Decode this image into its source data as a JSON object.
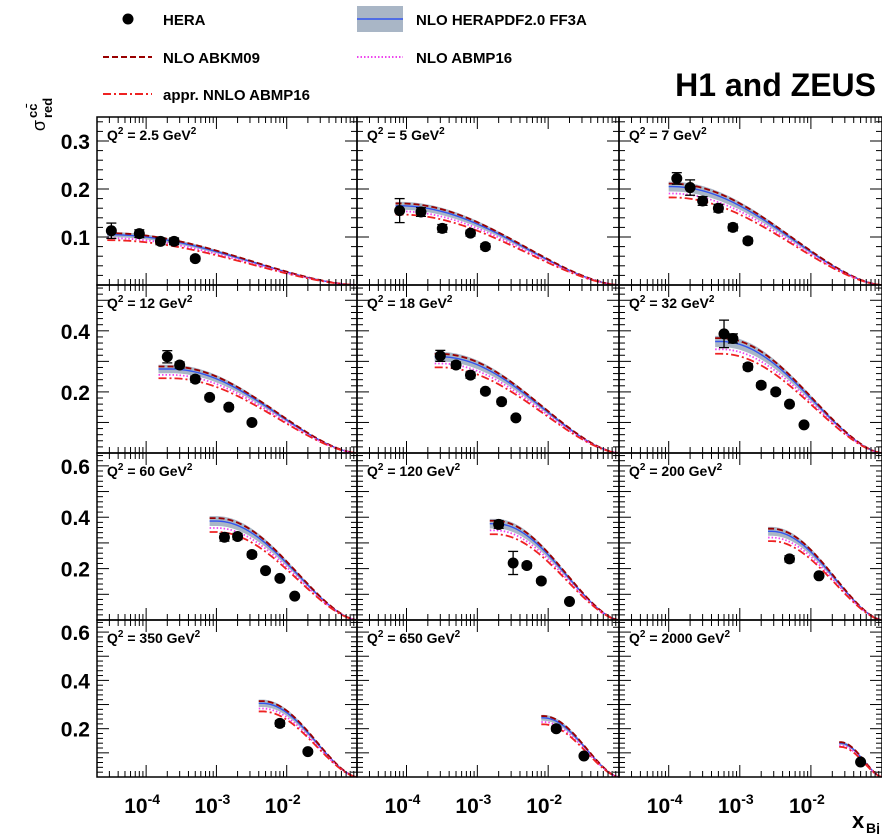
{
  "legend": {
    "hera": "HERA",
    "herapdf": "NLO HERAPDF2.0 FF3A",
    "abkm09": "NLO ABKM09",
    "abmp16": "NLO ABMP16",
    "abmp16_nnlo": "appr. NNLO ABMP16"
  },
  "collab_title": "H1 and ZEUS",
  "axis": {
    "ylabel_main": "σ",
    "ylabel_sup": "cc̄",
    "ylabel_sub": "red",
    "xlabel_main": "x",
    "xlabel_sub": "Bj"
  },
  "colors": {
    "herapdf_line": "#3355ee",
    "herapdf_band": "#a9b6c6",
    "abkm09": "#990000",
    "abmp16": "#ee44ee",
    "abmp16_nnlo": "#ee2222",
    "data": "#000000"
  },
  "chart_data": {
    "type": "scatter",
    "x_scale": "log",
    "x_axis_label": "x_Bj",
    "y_axis_label": "σ_red^cc̄",
    "xlim": [
      2e-05,
      0.1
    ],
    "x_ticks": [
      {
        "value": 0.0001,
        "label": "10",
        "exp": "-4"
      },
      {
        "value": 0.001,
        "label": "10",
        "exp": "-3"
      },
      {
        "value": 0.01,
        "label": "10",
        "exp": "-2"
      }
    ],
    "row_ylim": [
      [
        0.0,
        0.35
      ],
      [
        0.0,
        0.55
      ],
      [
        0.0,
        0.65
      ],
      [
        0.0,
        0.65
      ]
    ],
    "row_yticks": [
      [
        0.1,
        0.2,
        0.3
      ],
      [
        0.2,
        0.4
      ],
      [
        0.2,
        0.4,
        0.6
      ],
      [
        0.2,
        0.4,
        0.6
      ]
    ],
    "series_names": [
      "HERA",
      "NLO HERAPDF2.0 FF3A",
      "NLO ABKM09",
      "NLO ABMP16",
      "appr. NNLO ABMP16"
    ],
    "panels": [
      {
        "label_base": "Q",
        "label_sup": "2",
        "label_value": " = 2.5 GeV",
        "label_unit_sup": "2",
        "Q2": 2.5,
        "row": 0,
        "col": 0,
        "data": [
          {
            "x": 3.2e-05,
            "y": 0.113,
            "err": 0.016
          },
          {
            "x": 8e-05,
            "y": 0.107,
            "err": 0.008
          },
          {
            "x": 0.00016,
            "y": 0.091,
            "err": 0.007
          },
          {
            "x": 0.00025,
            "y": 0.091,
            "err": 0.007
          },
          {
            "x": 0.0005,
            "y": 0.055,
            "err": 0.005
          }
        ],
        "theory": {
          "xmin": 2.8e-05,
          "ymax": 0.105,
          "xpeak": 2.8e-05,
          "xend": 0.1,
          "yend": 0.0
        }
      },
      {
        "label_base": "Q",
        "label_sup": "2",
        "label_value": " = 5 GeV",
        "label_unit_sup": "2",
        "Q2": 5,
        "row": 0,
        "col": 1,
        "data": [
          {
            "x": 8e-05,
            "y": 0.155,
            "err": 0.025
          },
          {
            "x": 0.00016,
            "y": 0.152,
            "err": 0.009
          },
          {
            "x": 0.00032,
            "y": 0.118,
            "err": 0.008
          },
          {
            "x": 0.0008,
            "y": 0.108,
            "err": 0.006
          },
          {
            "x": 0.0013,
            "y": 0.08,
            "err": 0.006
          }
        ],
        "theory": {
          "xmin": 7e-05,
          "ymax": 0.165,
          "xpeak": 8e-05,
          "xend": 0.1,
          "yend": 0.0
        }
      },
      {
        "label_base": "Q",
        "label_sup": "2",
        "label_value": " = 7 GeV",
        "label_unit_sup": "2",
        "Q2": 7,
        "row": 0,
        "col": 2,
        "data": [
          {
            "x": 0.00013,
            "y": 0.222,
            "err": 0.012
          },
          {
            "x": 0.0002,
            "y": 0.203,
            "err": 0.016
          },
          {
            "x": 0.0003,
            "y": 0.175,
            "err": 0.009
          },
          {
            "x": 0.0005,
            "y": 0.16,
            "err": 0.008
          },
          {
            "x": 0.0008,
            "y": 0.12,
            "err": 0.007
          },
          {
            "x": 0.0013,
            "y": 0.092,
            "err": 0.006
          }
        ],
        "theory": {
          "xmin": 0.0001,
          "ymax": 0.205,
          "xpeak": 0.00011,
          "xend": 0.1,
          "yend": 0.0
        }
      },
      {
        "label_base": "Q",
        "label_sup": "2",
        "label_value": " = 12 GeV",
        "label_unit_sup": "2",
        "Q2": 12,
        "row": 1,
        "col": 0,
        "data": [
          {
            "x": 0.0002,
            "y": 0.315,
            "err": 0.02
          },
          {
            "x": 0.0003,
            "y": 0.288,
            "err": 0.01
          },
          {
            "x": 0.0005,
            "y": 0.242,
            "err": 0.01
          },
          {
            "x": 0.0008,
            "y": 0.182,
            "err": 0.008
          },
          {
            "x": 0.0015,
            "y": 0.15,
            "err": 0.008
          },
          {
            "x": 0.0032,
            "y": 0.1,
            "err": 0.006
          }
        ],
        "theory": {
          "xmin": 0.00015,
          "ymax": 0.275,
          "xpeak": 0.00022,
          "xend": 0.1,
          "yend": 0.0
        }
      },
      {
        "label_base": "Q",
        "label_sup": "2",
        "label_value": " = 18 GeV",
        "label_unit_sup": "2",
        "Q2": 18,
        "row": 1,
        "col": 1,
        "data": [
          {
            "x": 0.0003,
            "y": 0.318,
            "err": 0.018
          },
          {
            "x": 0.0005,
            "y": 0.288,
            "err": 0.01
          },
          {
            "x": 0.0008,
            "y": 0.255,
            "err": 0.01
          },
          {
            "x": 0.0013,
            "y": 0.202,
            "err": 0.008
          },
          {
            "x": 0.0022,
            "y": 0.168,
            "err": 0.008
          },
          {
            "x": 0.0035,
            "y": 0.115,
            "err": 0.007
          }
        ],
        "theory": {
          "xmin": 0.00025,
          "ymax": 0.315,
          "xpeak": 0.0003,
          "xend": 0.1,
          "yend": 0.0
        }
      },
      {
        "label_base": "Q",
        "label_sup": "2",
        "label_value": " = 32 GeV",
        "label_unit_sup": "2",
        "Q2": 32,
        "row": 1,
        "col": 2,
        "data": [
          {
            "x": 0.0006,
            "y": 0.39,
            "err": 0.045
          },
          {
            "x": 0.0008,
            "y": 0.375,
            "err": 0.015
          },
          {
            "x": 0.0013,
            "y": 0.282,
            "err": 0.01
          },
          {
            "x": 0.002,
            "y": 0.222,
            "err": 0.008
          },
          {
            "x": 0.0032,
            "y": 0.2,
            "err": 0.008
          },
          {
            "x": 0.005,
            "y": 0.16,
            "err": 0.007
          },
          {
            "x": 0.008,
            "y": 0.092,
            "err": 0.006
          }
        ],
        "theory": {
          "xmin": 0.00045,
          "ymax": 0.365,
          "xpeak": 0.00055,
          "xend": 0.1,
          "yend": 0.0
        }
      },
      {
        "label_base": "Q",
        "label_sup": "2",
        "label_value": " = 60 GeV",
        "label_unit_sup": "2",
        "Q2": 60,
        "row": 2,
        "col": 0,
        "data": [
          {
            "x": 0.0013,
            "y": 0.322,
            "err": 0.015
          },
          {
            "x": 0.002,
            "y": 0.325,
            "err": 0.012
          },
          {
            "x": 0.0032,
            "y": 0.255,
            "err": 0.01
          },
          {
            "x": 0.005,
            "y": 0.192,
            "err": 0.008
          },
          {
            "x": 0.008,
            "y": 0.162,
            "err": 0.007
          },
          {
            "x": 0.013,
            "y": 0.093,
            "err": 0.006
          }
        ],
        "theory": {
          "xmin": 0.0008,
          "ymax": 0.385,
          "xpeak": 0.001,
          "xend": 0.1,
          "yend": 0.0
        }
      },
      {
        "label_base": "Q",
        "label_sup": "2",
        "label_value": " = 120 GeV",
        "label_unit_sup": "2",
        "Q2": 120,
        "row": 2,
        "col": 1,
        "data": [
          {
            "x": 0.002,
            "y": 0.372,
            "err": 0.015
          },
          {
            "x": 0.0032,
            "y": 0.222,
            "err": 0.045
          },
          {
            "x": 0.005,
            "y": 0.212,
            "err": 0.01
          },
          {
            "x": 0.008,
            "y": 0.152,
            "err": 0.008
          },
          {
            "x": 0.02,
            "y": 0.072,
            "err": 0.006
          }
        ],
        "theory": {
          "xmin": 0.0015,
          "ymax": 0.375,
          "xpeak": 0.0018,
          "xend": 0.1,
          "yend": 0.0
        }
      },
      {
        "label_base": "Q",
        "label_sup": "2",
        "label_value": " = 200 GeV",
        "label_unit_sup": "2",
        "Q2": 200,
        "row": 2,
        "col": 2,
        "data": [
          {
            "x": 0.005,
            "y": 0.238,
            "err": 0.012
          },
          {
            "x": 0.013,
            "y": 0.172,
            "err": 0.008
          }
        ],
        "theory": {
          "xmin": 0.0025,
          "ymax": 0.345,
          "xpeak": 0.0028,
          "xend": 0.1,
          "yend": 0.0
        }
      },
      {
        "label_base": "Q",
        "label_sup": "2",
        "label_value": " = 350 GeV",
        "label_unit_sup": "2",
        "Q2": 350,
        "row": 3,
        "col": 0,
        "data": [
          {
            "x": 0.008,
            "y": 0.222,
            "err": 0.012
          },
          {
            "x": 0.02,
            "y": 0.105,
            "err": 0.008
          }
        ],
        "theory": {
          "xmin": 0.004,
          "ymax": 0.305,
          "xpeak": 0.0045,
          "xend": 0.1,
          "yend": 0.0
        }
      },
      {
        "label_base": "Q",
        "label_sup": "2",
        "label_value": " = 650 GeV",
        "label_unit_sup": "2",
        "Q2": 650,
        "row": 3,
        "col": 1,
        "data": [
          {
            "x": 0.013,
            "y": 0.2,
            "err": 0.01
          },
          {
            "x": 0.032,
            "y": 0.087,
            "err": 0.007
          }
        ],
        "theory": {
          "xmin": 0.008,
          "ymax": 0.245,
          "xpeak": 0.0085,
          "xend": 0.1,
          "yend": 0.0
        }
      },
      {
        "label_base": "Q",
        "label_sup": "2",
        "label_value": " = 2000 GeV",
        "label_unit_sup": "2",
        "Q2": 2000,
        "row": 3,
        "col": 2,
        "data": [
          {
            "x": 0.05,
            "y": 0.062,
            "err": 0.006
          }
        ],
        "theory": {
          "xmin": 0.025,
          "ymax": 0.14,
          "xpeak": 0.026,
          "xend": 0.1,
          "yend": 0.0
        }
      }
    ]
  }
}
